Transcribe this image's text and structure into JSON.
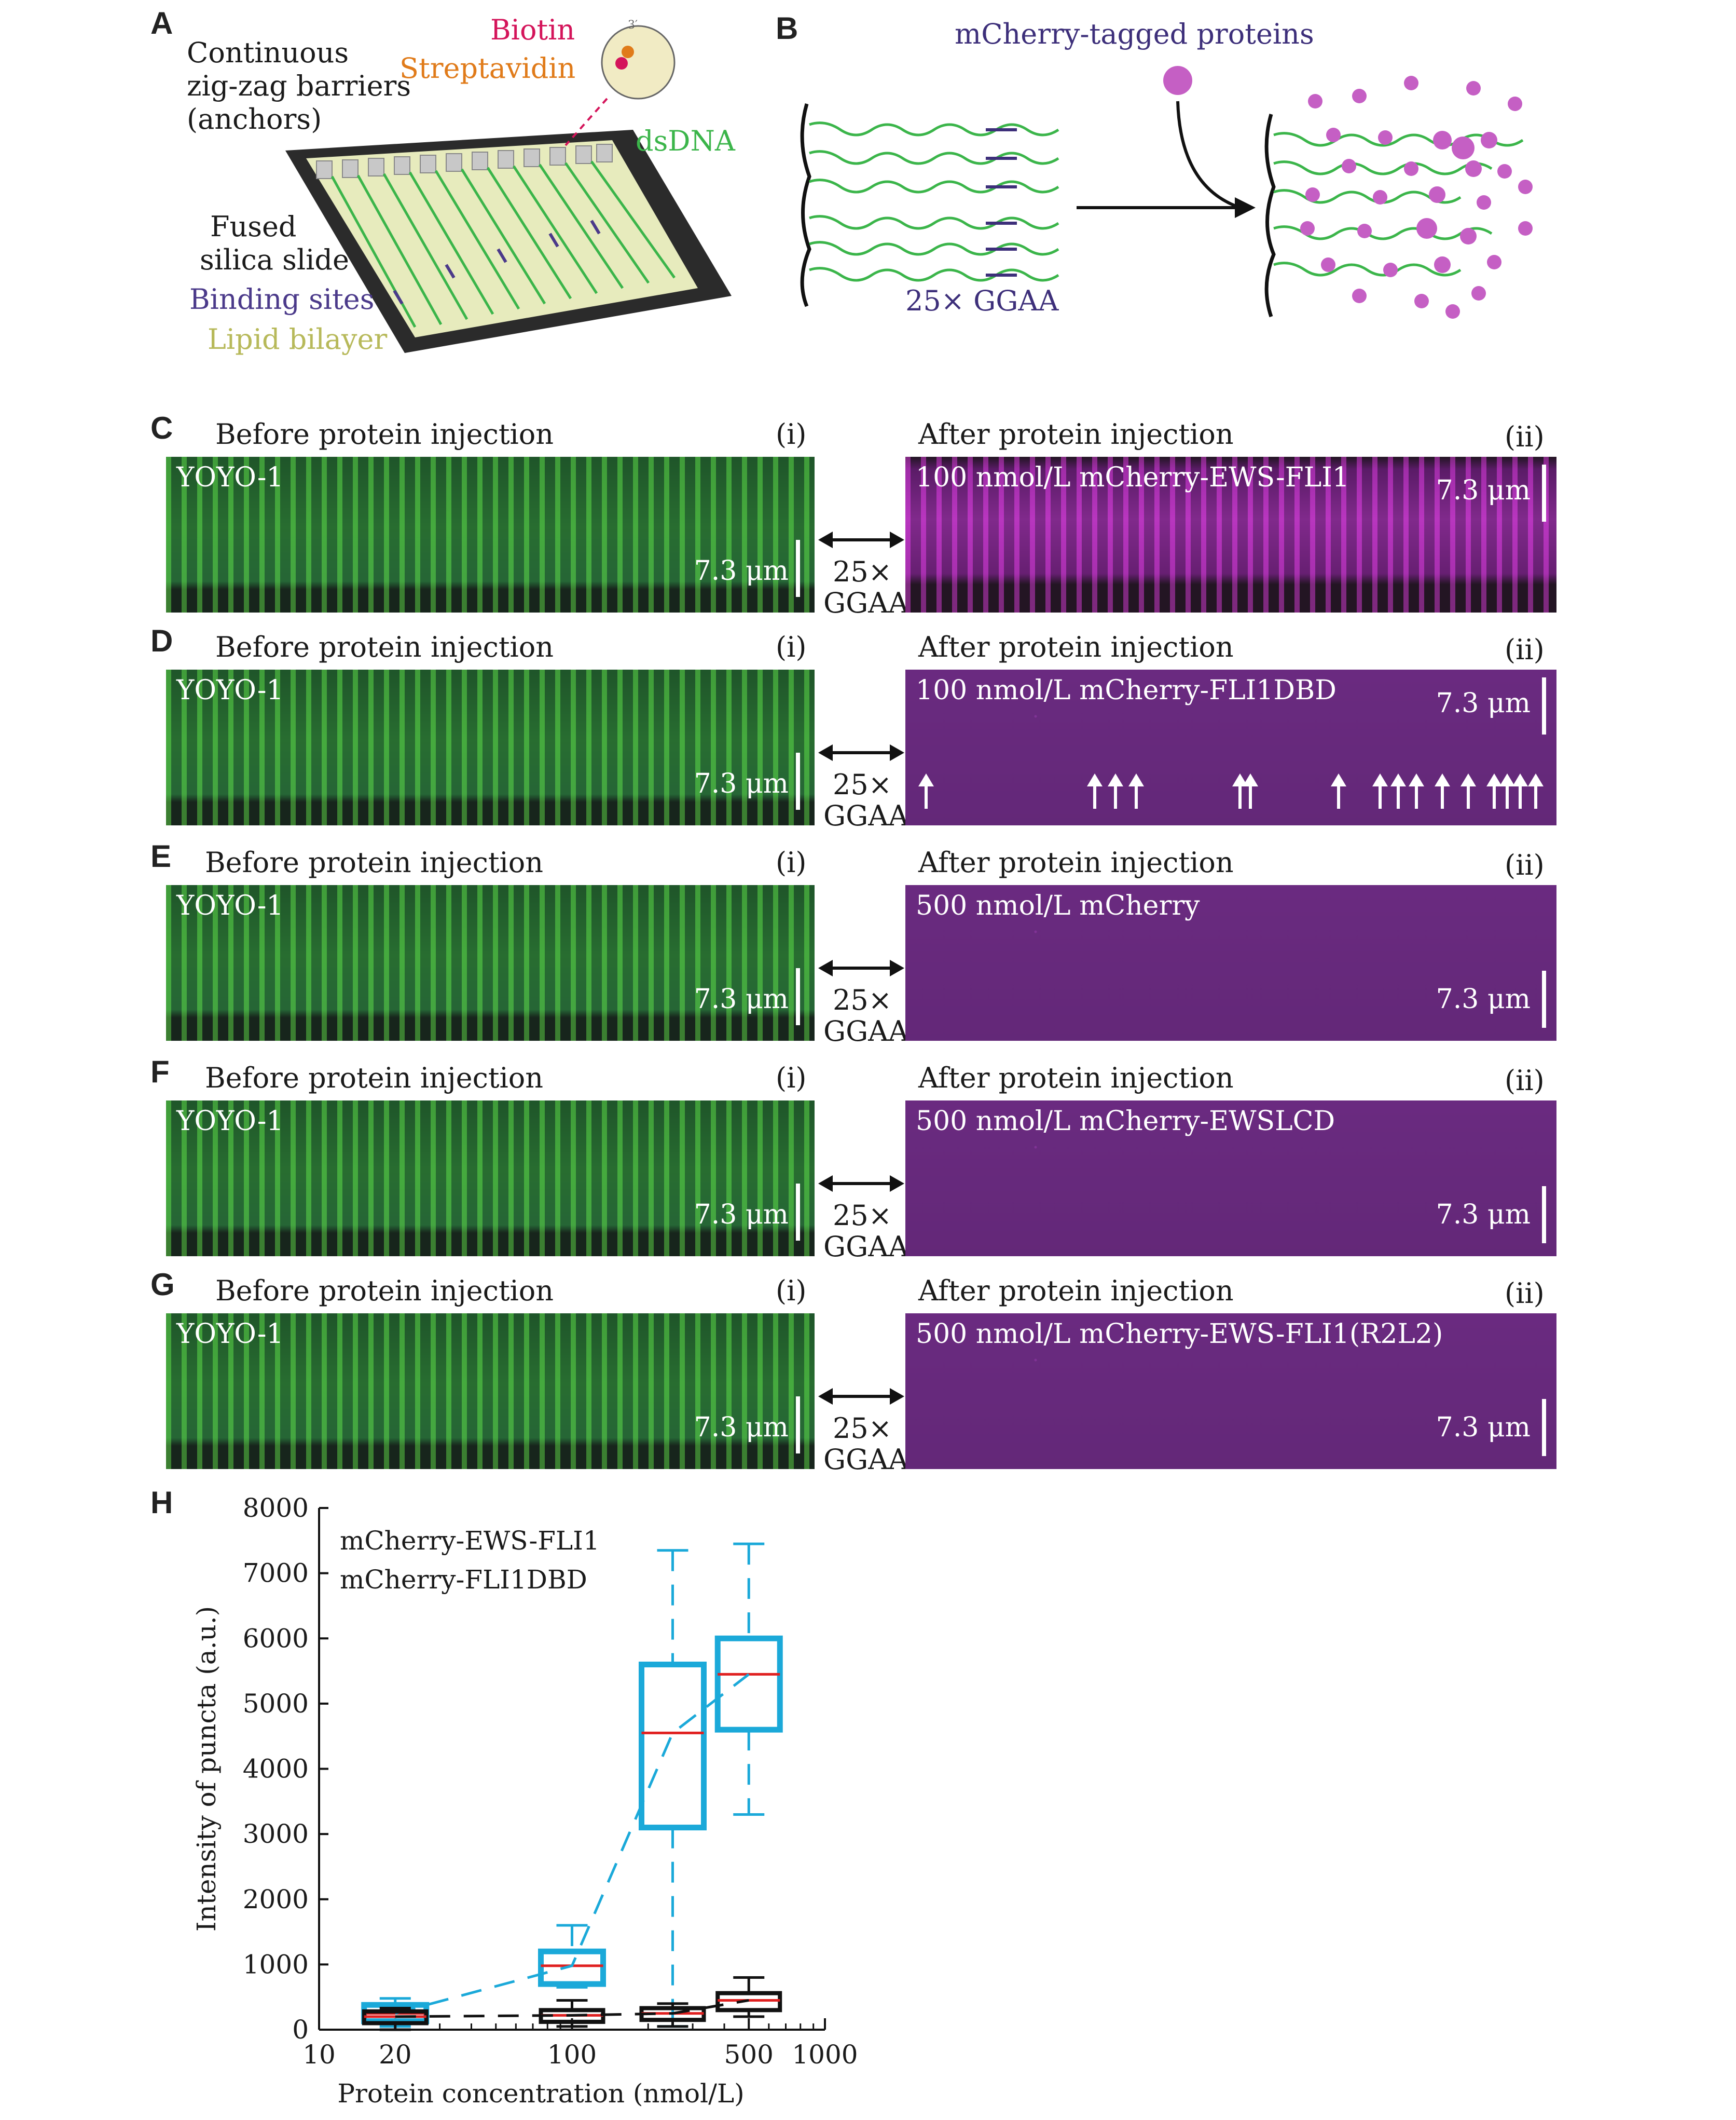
{
  "panel_a": {
    "letter": "A",
    "labels": {
      "barriers_1": "Continuous",
      "barriers_2": "zig-zag barriers",
      "barriers_3": "(anchors)",
      "biotin": "Biotin",
      "streptavidin": "Streptavidin",
      "three_prime": "3′",
      "dsdna": "dsDNA",
      "fused_1": "Fused",
      "fused_2": "silica slide",
      "binding_sites": "Binding sites",
      "lipid": "Lipid bilayer"
    },
    "colors": {
      "biotin": "#d4145a",
      "streptavidin": "#e07b1a",
      "dsdna": "#3bb54a",
      "binding": "#4b3a8a",
      "lipid": "#b7b95a"
    }
  },
  "panel_b": {
    "letter": "B",
    "title": "mCherry-tagged proteins",
    "label": "25× GGAA",
    "colors": {
      "title": "#3d2f7a",
      "protein": "#c55fc4"
    }
  },
  "rows": [
    {
      "letter": "C",
      "before_title": "Before protein injection",
      "before_tag": "(i)",
      "before_label": "YOYO-1",
      "scale": "7.3 μm",
      "after_title": "After protein injection",
      "after_tag": "(ii)",
      "after_label": "100 nmol/L mCherry-EWS-FLI1",
      "link_1": "25×",
      "link_2": "GGAA"
    },
    {
      "letter": "D",
      "before_title": "Before protein injection",
      "before_tag": "(i)",
      "before_label": "YOYO-1",
      "scale": "7.3 μm",
      "after_title": "After protein injection",
      "after_tag": "(ii)",
      "after_label": "100 nmol/L mCherry-FLI1DBD",
      "link_1": "25×",
      "link_2": "GGAA"
    },
    {
      "letter": "E",
      "before_title": "Before protein injection",
      "before_tag": "(i)",
      "before_label": "YOYO-1",
      "scale": "7.3 μm",
      "after_title": "After protein injection",
      "after_tag": "(ii)",
      "after_label": "500 nmol/L mCherry",
      "link_1": "25×",
      "link_2": "GGAA"
    },
    {
      "letter": "F",
      "before_title": "Before protein injection",
      "before_tag": "(i)",
      "before_label": "YOYO-1",
      "scale": "7.3 μm",
      "after_title": "After protein injection",
      "after_tag": "(ii)",
      "after_label": "500 nmol/L mCherry-EWSLCD",
      "link_1": "25×",
      "link_2": "GGAA"
    },
    {
      "letter": "G",
      "before_title": "Before protein injection",
      "before_tag": "(i)",
      "before_label": "YOYO-1",
      "scale": "7.3 μm",
      "after_title": "After protein injection",
      "after_tag": "(ii)",
      "after_label": "500 nmol/L mCherry-EWS-FLI1(R2L2)",
      "link_1": "25×",
      "link_2": "GGAA"
    }
  ],
  "panel_h": {
    "letter": "H"
  },
  "chart_data": {
    "type": "box",
    "xlabel": "Protein concentration (nmol/L)",
    "ylabel": "Intensity of puncta (a.u.)",
    "xscale": "log",
    "xlim": [
      10,
      1000
    ],
    "ylim": [
      0,
      8000
    ],
    "xticks": [
      10,
      20,
      100,
      500,
      1000
    ],
    "xtick_labels": [
      "10",
      "20",
      "100",
      "500",
      "1000"
    ],
    "yticks": [
      0,
      1000,
      2000,
      3000,
      4000,
      5000,
      6000,
      7000,
      8000
    ],
    "ytick_labels": [
      "0",
      "1000",
      "2000",
      "3000",
      "4000",
      "5000",
      "6000",
      "7000",
      "8000"
    ],
    "legend_position": "top-left",
    "series": [
      {
        "name": "mCherry-EWS-FLI1",
        "color": "#1ba9d9",
        "boxes": [
          {
            "x": 20,
            "whisker_low": 50,
            "q1": 130,
            "median": 250,
            "q3": 380,
            "whisker_high": 480
          },
          {
            "x": 100,
            "whisker_low": 650,
            "q1": 700,
            "median": 980,
            "q3": 1200,
            "whisker_high": 1600
          },
          {
            "x": 250,
            "whisker_low": 50,
            "q1": 3100,
            "median": 4550,
            "q3": 5600,
            "whisker_high": 7350
          },
          {
            "x": 500,
            "whisker_low": 3300,
            "q1": 4600,
            "median": 5450,
            "q3": 6000,
            "whisker_high": 7450
          }
        ]
      },
      {
        "name": "mCherry-FLI1DBD",
        "color": "#111111",
        "boxes": [
          {
            "x": 20,
            "whisker_low": 0,
            "q1": 100,
            "median": 200,
            "q3": 280,
            "whisker_high": 330
          },
          {
            "x": 100,
            "whisker_low": 50,
            "q1": 120,
            "median": 220,
            "q3": 300,
            "whisker_high": 450
          },
          {
            "x": 250,
            "whisker_low": 50,
            "q1": 150,
            "median": 250,
            "q3": 330,
            "whisker_high": 400
          },
          {
            "x": 500,
            "whisker_low": 200,
            "q1": 300,
            "median": 450,
            "q3": 560,
            "whisker_high": 800
          }
        ]
      }
    ],
    "median_color": "#e02020"
  }
}
